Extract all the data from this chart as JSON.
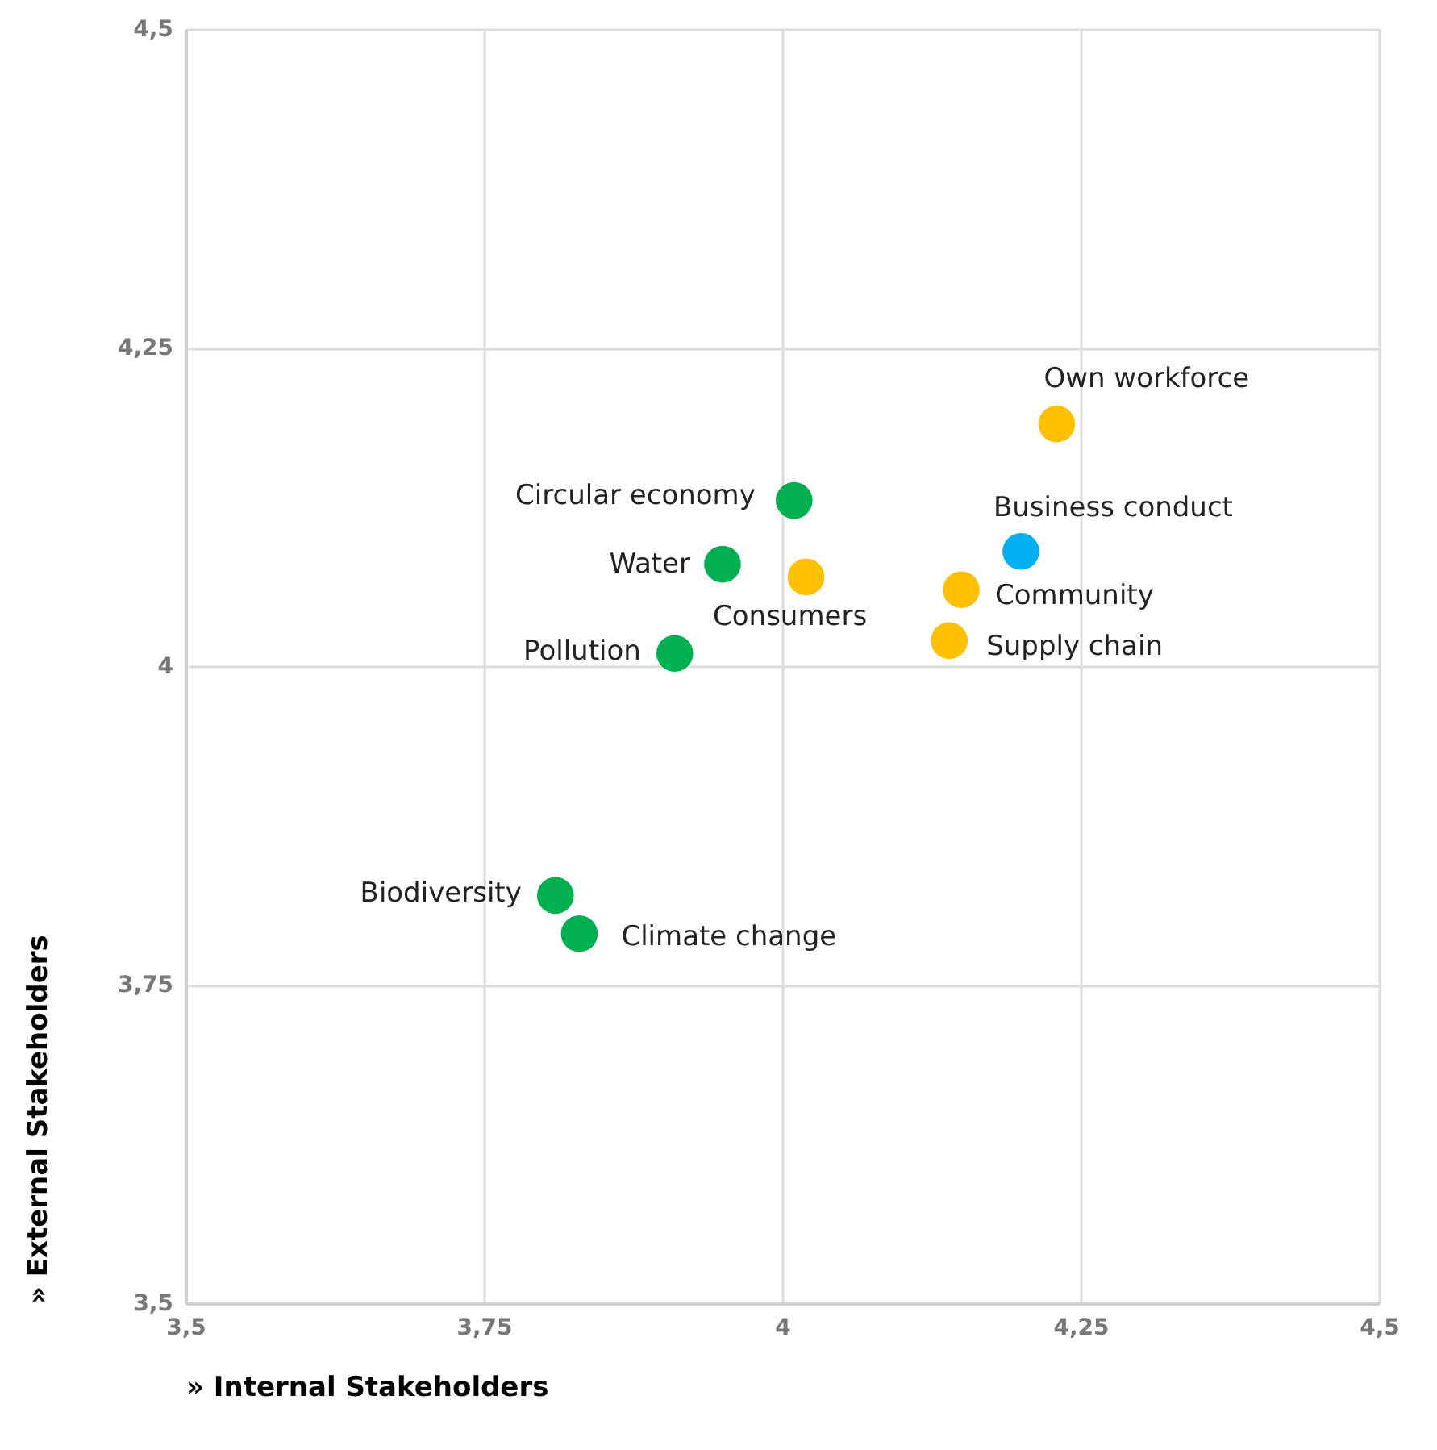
{
  "chart_data": {
    "type": "scatter",
    "xlabel": "» Internal Stakeholders",
    "ylabel": "» External Stakeholders",
    "xlim": [
      3.5,
      4.5
    ],
    "ylim": [
      3.5,
      4.5
    ],
    "xticks": [
      {
        "value": 3.5,
        "label": "3,5"
      },
      {
        "value": 3.75,
        "label": "3,75"
      },
      4,
      {
        "value": 4.25,
        "label": "4,25"
      },
      {
        "value": 4.5,
        "label": "4,5"
      }
    ],
    "yticks": [
      {
        "value": 3.5,
        "label": "3,5"
      },
      {
        "value": 3.75,
        "label": "3,75"
      },
      4,
      {
        "value": 4.25,
        "label": "4,25"
      },
      {
        "value": 4.5,
        "label": "4,5"
      }
    ],
    "grid": true,
    "marker": "circle",
    "series": [
      {
        "color": "#00b050",
        "x": [
          4.01,
          3.95,
          3.91,
          3.81,
          3.83
        ],
        "values": [
          4.13,
          4.08,
          4.01,
          3.82,
          3.79
        ]
      },
      {
        "color": "#ffc000",
        "x": [
          4.23,
          4.02,
          4.15,
          4.14
        ],
        "values": [
          4.19,
          4.07,
          4.06,
          4.02
        ]
      },
      {
        "color": "#00b0f0",
        "x": [
          4.2
        ],
        "values": [
          4.09
        ]
      }
    ],
    "annotations": [
      {
        "text": "Own workforce",
        "x": 4.23,
        "y": 4.19
      },
      {
        "text": "Circular economy",
        "x": 4.01,
        "y": 4.13
      },
      {
        "text": "Business conduct",
        "x": 4.2,
        "y": 4.09
      },
      {
        "text": "Water",
        "x": 3.95,
        "y": 4.08
      },
      {
        "text": "Consumers",
        "x": 4.02,
        "y": 4.07
      },
      {
        "text": "Community",
        "x": 4.15,
        "y": 4.06
      },
      {
        "text": "Supply chain",
        "x": 4.14,
        "y": 4.02
      },
      {
        "text": "Pollution",
        "x": 3.91,
        "y": 4.01
      },
      {
        "text": "Biodiversity",
        "x": 3.81,
        "y": 3.82
      },
      {
        "text": "Climate change",
        "x": 3.83,
        "y": 3.79
      }
    ]
  }
}
